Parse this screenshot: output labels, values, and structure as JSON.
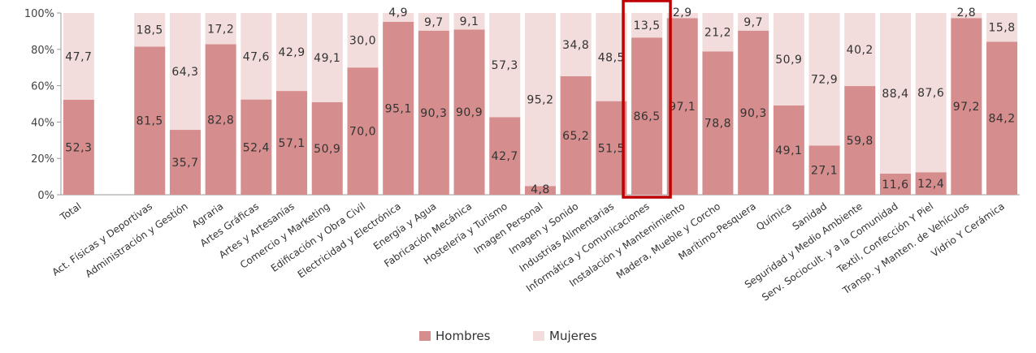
{
  "chart_data": {
    "type": "bar",
    "stacked": true,
    "percent": true,
    "categories": [
      "Total",
      "",
      "Act. Físicas y Deportivas",
      "Administración y Gestión",
      "Agraria",
      "Artes Gráficas",
      "Artes y Artesanías",
      "Comercio y Marketing",
      "Edificación y Obra Civil",
      "Electricidad y Electrónica",
      "Energía y Agua",
      "Fabricación Mecánica",
      "Hostelería y Turismo",
      "Imagen Personal",
      "Imagen y Sonido",
      "Industrias Alimentarias",
      "Informática y Comunicaciones",
      "Instalación y Mantenimiento",
      "Madera, Mueble y Corcho",
      "Marítimo-Pesquera",
      "Química",
      "Sanidad",
      "Seguridad y Medio Ambiente",
      "Serv. Sociocult. y a la Comunidad",
      "Textil, Confección Y Piel",
      "Transp. y Manten. de Vehículos",
      "Vidrio Y Cerámica"
    ],
    "series": [
      {
        "name": "Hombres",
        "color": "#d68d8d",
        "values": [
          52.3,
          null,
          81.5,
          35.7,
          82.8,
          52.4,
          57.1,
          50.9,
          70.0,
          95.1,
          90.3,
          90.9,
          42.7,
          4.8,
          65.2,
          51.5,
          86.5,
          97.1,
          78.8,
          90.3,
          49.1,
          27.1,
          59.8,
          11.6,
          12.4,
          97.2,
          84.2
        ],
        "labels": [
          "52,3",
          "",
          "81,5",
          "35,7",
          "82,8",
          "52,4",
          "57,1",
          "50,9",
          "70,0",
          "95,1",
          "90,3",
          "90,9",
          "42,7",
          "4,8",
          "65,2",
          "51,5",
          "86,5",
          "97,1",
          "78,8",
          "90,3",
          "49,1",
          "27,1",
          "59,8",
          "11,6",
          "12,4",
          "97,2",
          "84,2"
        ]
      },
      {
        "name": "Mujeres",
        "color": "#f2dcdc",
        "values": [
          47.7,
          null,
          18.5,
          64.3,
          17.2,
          47.6,
          42.9,
          49.1,
          30.0,
          4.9,
          9.7,
          9.1,
          57.3,
          95.2,
          34.8,
          48.5,
          13.5,
          2.9,
          21.2,
          9.7,
          50.9,
          72.9,
          40.2,
          88.4,
          87.6,
          2.8,
          15.8
        ],
        "labels": [
          "47,7",
          "",
          "18,5",
          "64,3",
          "17,2",
          "47,6",
          "42,9",
          "49,1",
          "30,0",
          "4,9",
          "9,7",
          "9,1",
          "57,3",
          "95,2",
          "34,8",
          "48,5",
          "13,5",
          "2,9",
          "21,2",
          "9,7",
          "50,9",
          "72,9",
          "40,2",
          "88,4",
          "87,6",
          "2,8",
          "15,8"
        ]
      }
    ],
    "yticks": [
      "0%",
      "20%",
      "40%",
      "60%",
      "80%",
      "100%"
    ],
    "ylim": [
      0,
      100
    ],
    "grid": false,
    "legend": "bottom-center",
    "highlight_category": "Informática y Comunicaciones",
    "highlight_color": "#c00000"
  }
}
